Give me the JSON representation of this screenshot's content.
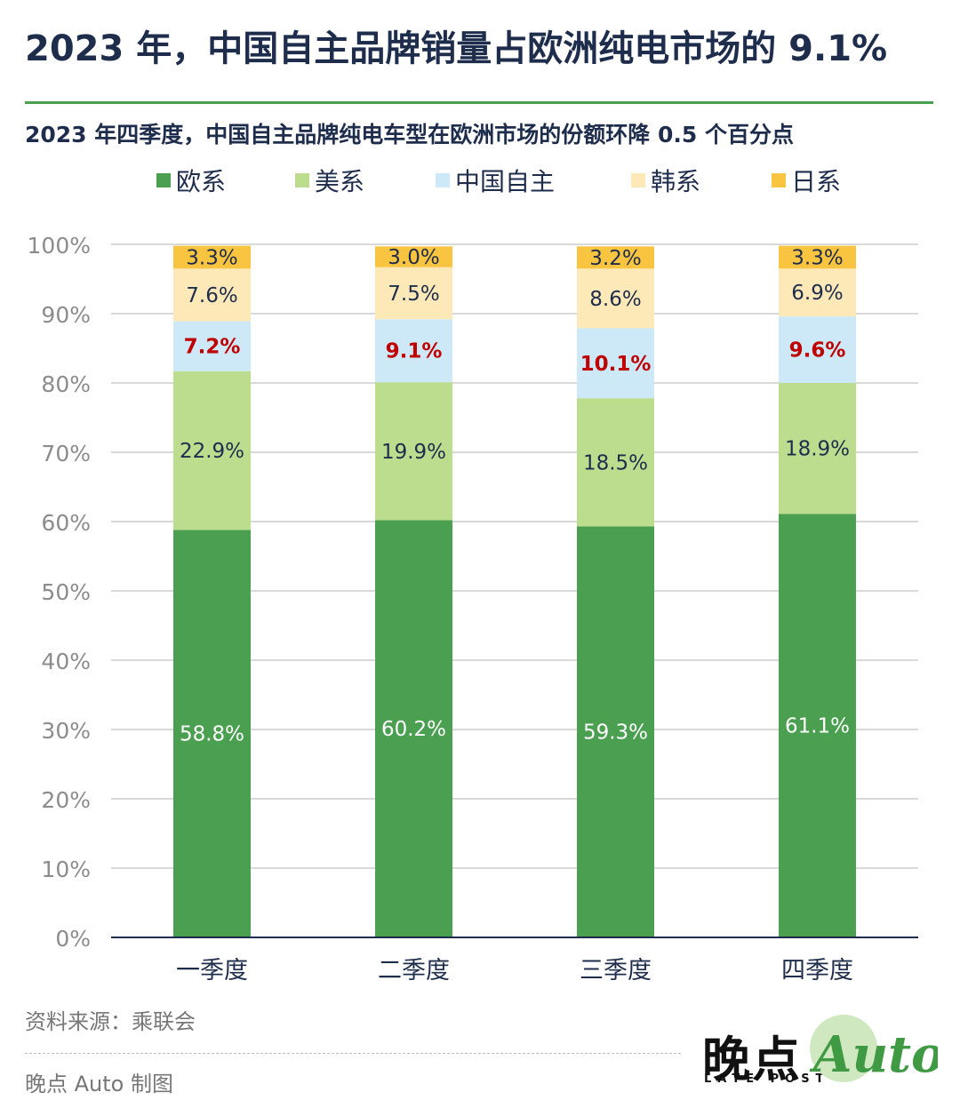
{
  "title": "2023 年，中国自主品牌销量占欧洲纯电市场的 9.1%",
  "subtitle": "2023 年四季度，中国自主品牌纯电车型在欧洲市场的份额环降 0.5 个百分点",
  "source": "资料来源：乘联会",
  "credit": "晚点 Auto 制图",
  "logo": {
    "cn": "晚点",
    "en": "LATE POST",
    "auto": "Auto"
  },
  "chart_data": {
    "type": "bar",
    "stacked": true,
    "categories": [
      "一季度",
      "二季度",
      "三季度",
      "四季度"
    ],
    "ylim": [
      0,
      100
    ],
    "yticks": [
      "0%",
      "10%",
      "20%",
      "30%",
      "40%",
      "50%",
      "60%",
      "70%",
      "80%",
      "90%",
      "100%"
    ],
    "grid": true,
    "legend_position": "top",
    "series": [
      {
        "name": "欧系",
        "color": "#4aa050",
        "label_color": "#ffffff",
        "labels_bold": false,
        "values": [
          58.8,
          60.2,
          59.3,
          61.1
        ],
        "labels": [
          "58.8%",
          "60.2%",
          "59.3%",
          "61.1%"
        ]
      },
      {
        "name": "美系",
        "color": "#bddd8e",
        "label_color": "#1f2d4d",
        "labels_bold": false,
        "values": [
          22.9,
          19.9,
          18.5,
          18.9
        ],
        "labels": [
          "22.9%",
          "19.9%",
          "18.5%",
          "18.9%"
        ]
      },
      {
        "name": "中国自主",
        "color": "#cde9f8",
        "label_color": "#c00000",
        "labels_bold": true,
        "values": [
          7.2,
          9.1,
          10.1,
          9.6
        ],
        "labels": [
          "7.2%",
          "9.1%",
          "10.1%",
          "9.6%"
        ]
      },
      {
        "name": "韩系",
        "color": "#fde9b8",
        "label_color": "#1f2d4d",
        "labels_bold": false,
        "values": [
          7.6,
          7.5,
          8.6,
          6.9
        ],
        "labels": [
          "7.6%",
          "7.5%",
          "8.6%",
          "6.9%"
        ]
      },
      {
        "name": "日系",
        "color": "#f9c440",
        "label_color": "#1f2d4d",
        "labels_bold": false,
        "values": [
          3.3,
          3.0,
          3.2,
          3.3
        ],
        "labels": [
          "3.3%",
          "3.0%",
          "3.2%",
          "3.3%"
        ]
      }
    ]
  }
}
